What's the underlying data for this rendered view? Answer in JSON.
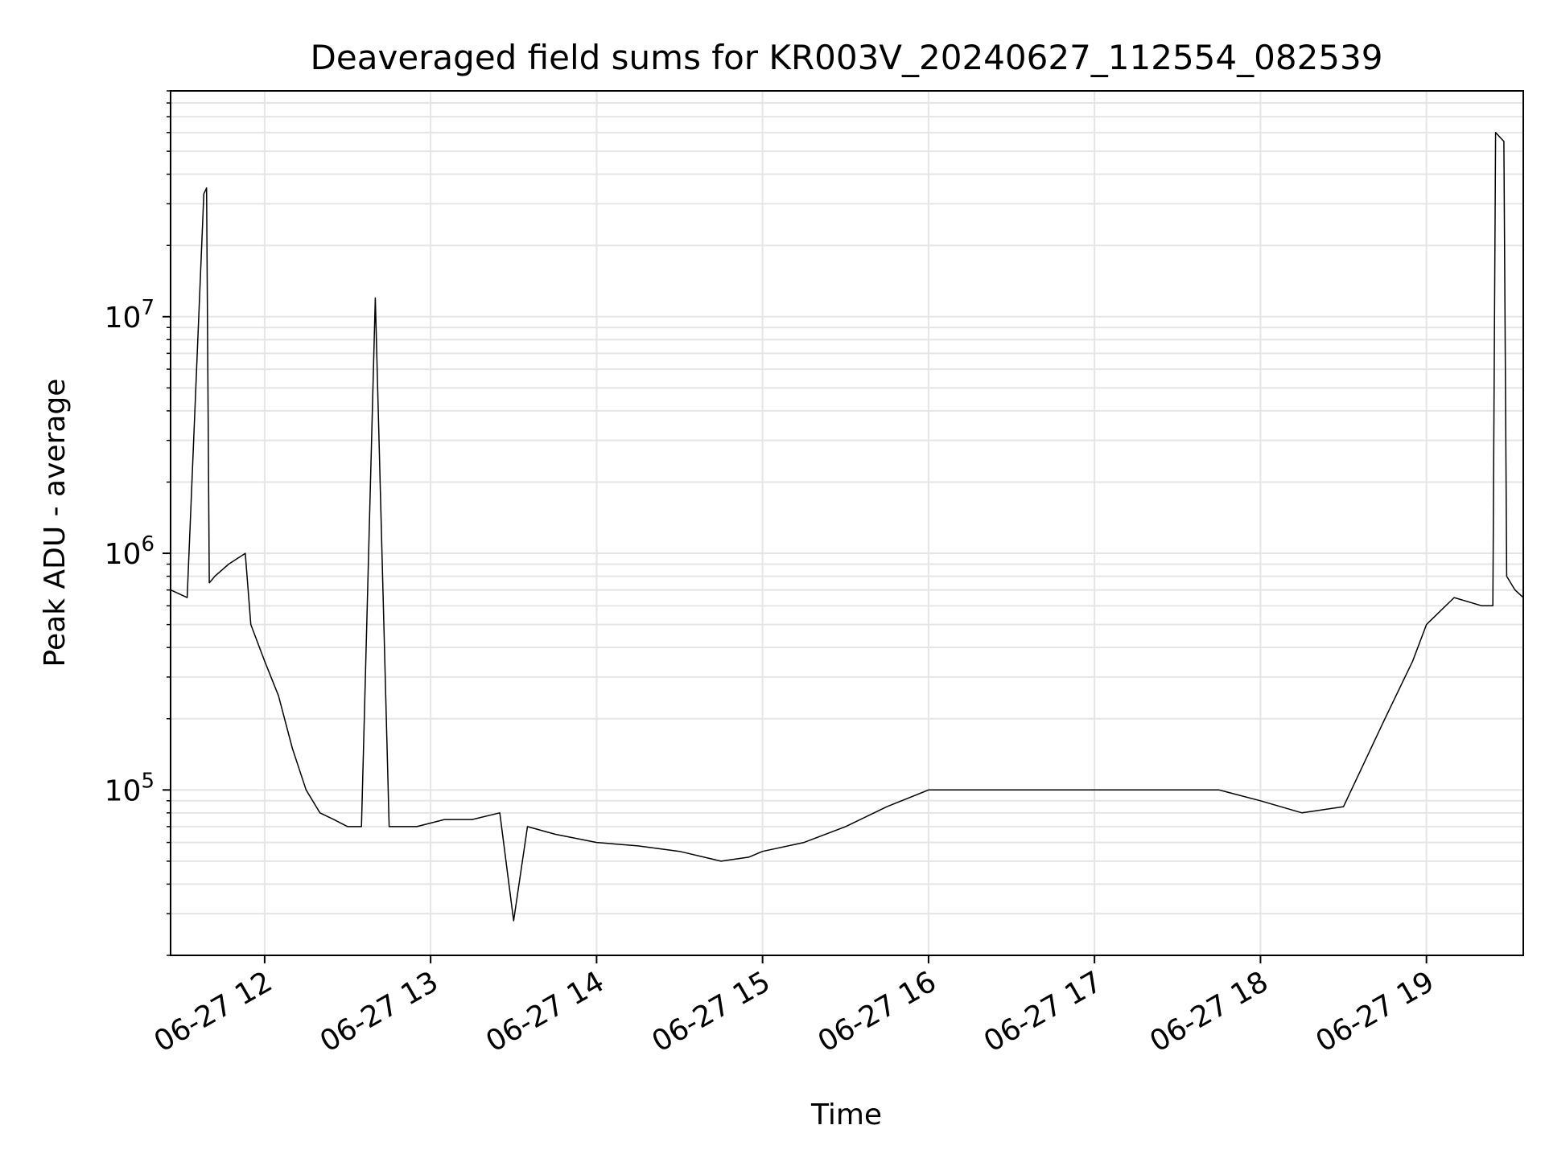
{
  "chart_data": {
    "type": "line",
    "title": "Deaveraged field sums for KR003V_20240627_112554_082539",
    "xlabel": "Time",
    "ylabel": "Peak ADU - average",
    "xlim": [
      "2024-06-27 11:26",
      "2024-06-27 19:35"
    ],
    "ylim": [
      20000,
      90000000
    ],
    "yscale": "log",
    "grid": true,
    "x_ticks": [
      {
        "value": "2024-06-27 12:00",
        "label": "06-27 12"
      },
      {
        "value": "2024-06-27 13:00",
        "label": "06-27 13"
      },
      {
        "value": "2024-06-27 14:00",
        "label": "06-27 14"
      },
      {
        "value": "2024-06-27 15:00",
        "label": "06-27 15"
      },
      {
        "value": "2024-06-27 16:00",
        "label": "06-27 16"
      },
      {
        "value": "2024-06-27 17:00",
        "label": "06-27 17"
      },
      {
        "value": "2024-06-27 18:00",
        "label": "06-27 18"
      },
      {
        "value": "2024-06-27 19:00",
        "label": "06-27 19"
      }
    ],
    "y_ticks": [
      {
        "value": 100000,
        "base": "10",
        "exp": "5"
      },
      {
        "value": 1000000,
        "base": "10",
        "exp": "6"
      },
      {
        "value": 10000000,
        "base": "10",
        "exp": "7"
      }
    ],
    "line_color": "#000000",
    "series": [
      {
        "x": [
          "2024-06-27 11:26",
          "2024-06-27 11:32",
          "2024-06-27 11:38",
          "2024-06-27 11:39",
          "2024-06-27 11:40",
          "2024-06-27 11:42",
          "2024-06-27 11:47",
          "2024-06-27 11:53",
          "2024-06-27 11:55",
          "2024-06-27 12:00",
          "2024-06-27 12:05",
          "2024-06-27 12:10",
          "2024-06-27 12:15",
          "2024-06-27 12:20",
          "2024-06-27 12:25",
          "2024-06-27 12:30",
          "2024-06-27 12:35",
          "2024-06-27 12:40",
          "2024-06-27 12:45",
          "2024-06-27 12:46",
          "2024-06-27 12:47",
          "2024-06-27 12:55",
          "2024-06-27 13:05",
          "2024-06-27 13:15",
          "2024-06-27 13:25",
          "2024-06-27 13:30",
          "2024-06-27 13:35",
          "2024-06-27 13:45",
          "2024-06-27 14:00",
          "2024-06-27 14:15",
          "2024-06-27 14:30",
          "2024-06-27 14:45",
          "2024-06-27 14:55",
          "2024-06-27 15:00",
          "2024-06-27 15:15",
          "2024-06-27 15:30",
          "2024-06-27 15:45",
          "2024-06-27 16:00",
          "2024-06-27 16:15",
          "2024-06-27 16:30",
          "2024-06-27 16:45",
          "2024-06-27 17:00",
          "2024-06-27 17:15",
          "2024-06-27 17:30",
          "2024-06-27 17:45",
          "2024-06-27 18:00",
          "2024-06-27 18:15",
          "2024-06-27 18:30",
          "2024-06-27 18:45",
          "2024-06-27 18:55",
          "2024-06-27 19:00",
          "2024-06-27 19:10",
          "2024-06-27 19:20",
          "2024-06-27 19:24",
          "2024-06-27 19:25",
          "2024-06-27 19:28",
          "2024-06-27 19:29",
          "2024-06-27 19:32",
          "2024-06-27 19:35"
        ],
        "values": [
          700000,
          650000,
          33000000,
          35000000,
          750000,
          800000,
          900000,
          1000000,
          500000,
          350000,
          250000,
          150000,
          100000,
          80000,
          75000,
          70000,
          70000,
          12000000,
          70000,
          70000,
          70000,
          70000,
          75000,
          75000,
          80000,
          28000,
          70000,
          65000,
          60000,
          58000,
          55000,
          50000,
          52000,
          55000,
          60000,
          70000,
          85000,
          100000,
          100000,
          100000,
          100000,
          100000,
          100000,
          100000,
          100000,
          90000,
          80000,
          85000,
          200000,
          350000,
          500000,
          650000,
          600000,
          600000,
          60000000,
          55000000,
          800000,
          700000,
          650000
        ]
      }
    ]
  }
}
